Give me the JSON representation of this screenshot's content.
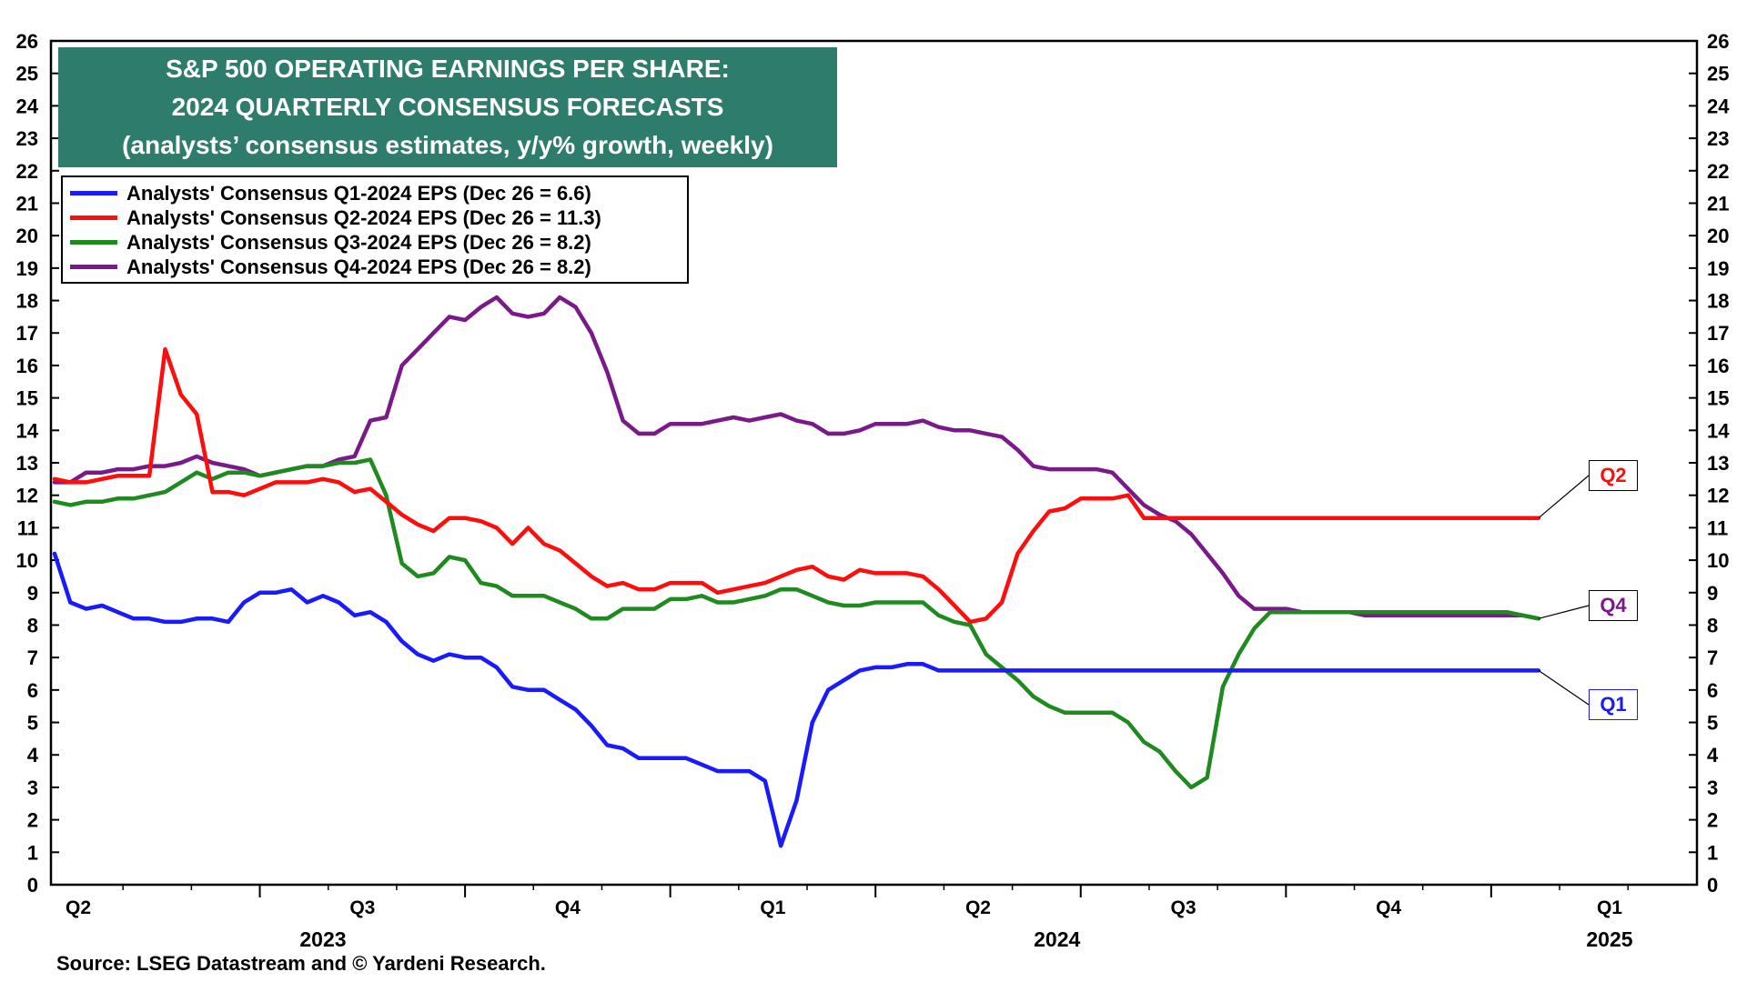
{
  "title": {
    "line1": "S&P 500 OPERATING EARNINGS PER SHARE:",
    "line2": "2024 QUARTERLY CONSENSUS FORECASTS",
    "line3": "(analysts’ consensus estimates, y/y% growth, weekly)"
  },
  "source": "Source: LSEG Datastream and © Yardeni Research.",
  "colors": {
    "q1": "#1a1aff",
    "q2": "#ff0d0d",
    "q3": "#1f8a1f",
    "q4": "#7a1a8a",
    "title_bg": "#2e7d6c"
  },
  "callouts": {
    "q1": "Q1",
    "q2": "Q2",
    "q4": "Q4"
  },
  "chart_data": {
    "type": "line",
    "title": "S&P 500 OPERATING EARNINGS PER SHARE: 2024 QUARTERLY CONSENSUS FORECASTS",
    "ylim": [
      0,
      26
    ],
    "yticks": [
      0,
      1,
      2,
      3,
      4,
      5,
      6,
      7,
      8,
      9,
      10,
      11,
      12,
      13,
      14,
      15,
      16,
      17,
      18,
      19,
      20,
      21,
      22,
      23,
      24,
      25,
      26
    ],
    "grid": false,
    "legend_position": "top-left",
    "x_quarter_labels": [
      "Q2",
      "Q3",
      "Q4",
      "Q1",
      "Q2",
      "Q3",
      "Q4",
      "Q1"
    ],
    "x_year_labels": [
      "2023",
      "2024",
      "2025"
    ],
    "x_unit": "weeks since start of Apr 2023",
    "x_range": [
      0,
      100
    ],
    "series": [
      {
        "name": "Analysts' Consensus Q1-2024 EPS (Dec 26 = 6.6)",
        "color": "#1a1aff",
        "x": [
          0,
          1,
          2,
          3,
          4,
          5,
          6,
          7,
          8,
          9,
          10,
          11,
          12,
          13,
          14,
          15,
          16,
          17,
          18,
          19,
          20,
          21,
          22,
          23,
          24,
          25,
          26,
          27,
          28,
          29,
          30,
          31,
          32,
          33,
          34,
          35,
          36,
          37,
          38,
          39,
          40,
          41,
          42,
          43,
          44,
          45,
          46,
          47,
          48,
          49,
          50,
          51,
          52,
          53,
          54,
          55,
          56,
          57,
          58,
          59,
          60,
          61,
          62,
          63,
          64,
          65,
          66,
          67,
          68,
          69,
          70,
          71,
          72,
          73,
          74,
          75,
          76,
          77,
          78,
          79,
          80,
          81,
          82,
          83,
          84,
          85,
          86,
          87,
          88,
          89,
          90,
          91,
          92,
          93,
          94
        ],
        "y": [
          10.2,
          8.7,
          8.5,
          8.6,
          8.4,
          8.2,
          8.2,
          8.1,
          8.1,
          8.2,
          8.2,
          8.1,
          8.7,
          9.0,
          9.0,
          9.1,
          8.7,
          8.9,
          8.7,
          8.3,
          8.4,
          8.1,
          7.5,
          7.1,
          6.9,
          7.1,
          7.0,
          7.0,
          6.7,
          6.1,
          6.0,
          6.0,
          5.7,
          5.4,
          4.9,
          4.3,
          4.2,
          3.9,
          3.9,
          3.9,
          3.9,
          3.7,
          3.5,
          3.5,
          3.5,
          3.2,
          1.2,
          2.6,
          5.0,
          6.0,
          6.3,
          6.6,
          6.7,
          6.7,
          6.8,
          6.8,
          6.6,
          6.6,
          6.6,
          6.6,
          6.6,
          6.6,
          6.6,
          6.6,
          6.6,
          6.6,
          6.6,
          6.6,
          6.6,
          6.6,
          6.6,
          6.6,
          6.6,
          6.6,
          6.6,
          6.6,
          6.6,
          6.6,
          6.6,
          6.6,
          6.6,
          6.6,
          6.6,
          6.6,
          6.6,
          6.6,
          6.6,
          6.6,
          6.6,
          6.6,
          6.6,
          6.6,
          6.6,
          6.6,
          6.6
        ]
      },
      {
        "name": "Analysts' Consensus Q2-2024 EPS (Dec 26 = 11.3)",
        "color": "#ff0d0d",
        "x": [
          0,
          1,
          2,
          3,
          4,
          5,
          6,
          7,
          8,
          9,
          10,
          11,
          12,
          13,
          14,
          15,
          16,
          17,
          18,
          19,
          20,
          21,
          22,
          23,
          24,
          25,
          26,
          27,
          28,
          29,
          30,
          31,
          32,
          33,
          34,
          35,
          36,
          37,
          38,
          39,
          40,
          41,
          42,
          43,
          44,
          45,
          46,
          47,
          48,
          49,
          50,
          51,
          52,
          53,
          54,
          55,
          56,
          57,
          58,
          59,
          60,
          61,
          62,
          63,
          64,
          65,
          66,
          67,
          68,
          69,
          70,
          71,
          72,
          73,
          74,
          75,
          76,
          77,
          78,
          79,
          80,
          81,
          82,
          83,
          84,
          85,
          86,
          87,
          88,
          89,
          90,
          91,
          92,
          93,
          94
        ],
        "y": [
          12.5,
          12.4,
          12.4,
          12.5,
          12.6,
          12.6,
          12.6,
          16.5,
          15.1,
          14.5,
          12.1,
          12.1,
          12.0,
          12.2,
          12.4,
          12.4,
          12.4,
          12.5,
          12.4,
          12.1,
          12.2,
          11.8,
          11.4,
          11.1,
          10.9,
          11.3,
          11.3,
          11.2,
          11.0,
          10.5,
          11.0,
          10.5,
          10.3,
          9.9,
          9.5,
          9.2,
          9.3,
          9.1,
          9.1,
          9.3,
          9.3,
          9.3,
          9.0,
          9.1,
          9.2,
          9.3,
          9.5,
          9.7,
          9.8,
          9.5,
          9.4,
          9.7,
          9.6,
          9.6,
          9.6,
          9.5,
          9.1,
          8.6,
          8.1,
          8.2,
          8.7,
          10.2,
          10.9,
          11.5,
          11.6,
          11.9,
          11.9,
          11.9,
          12.0,
          11.3,
          11.3,
          11.3,
          11.3,
          11.3,
          11.3,
          11.3,
          11.3,
          11.3,
          11.3,
          11.3,
          11.3,
          11.3,
          11.3,
          11.3,
          11.3,
          11.3,
          11.3,
          11.3,
          11.3,
          11.3,
          11.3,
          11.3,
          11.3,
          11.3,
          11.3
        ]
      },
      {
        "name": "Analysts' Consensus Q3-2024 EPS (Dec 26 = 8.2)",
        "color": "#1f8a1f",
        "x": [
          0,
          1,
          2,
          3,
          4,
          5,
          6,
          7,
          8,
          9,
          10,
          11,
          12,
          13,
          14,
          15,
          16,
          17,
          18,
          19,
          20,
          21,
          22,
          23,
          24,
          25,
          26,
          27,
          28,
          29,
          30,
          31,
          32,
          33,
          34,
          35,
          36,
          37,
          38,
          39,
          40,
          41,
          42,
          43,
          44,
          45,
          46,
          47,
          48,
          49,
          50,
          51,
          52,
          53,
          54,
          55,
          56,
          57,
          58,
          59,
          60,
          61,
          62,
          63,
          64,
          65,
          66,
          67,
          68,
          69,
          70,
          71,
          72,
          73,
          74,
          75,
          76,
          77,
          78,
          79,
          80,
          81,
          82,
          83,
          84,
          85,
          86,
          87,
          88,
          89,
          90,
          91,
          92,
          93,
          94
        ],
        "y": [
          11.8,
          11.7,
          11.8,
          11.8,
          11.9,
          11.9,
          12.0,
          12.1,
          12.4,
          12.7,
          12.5,
          12.7,
          12.7,
          12.6,
          12.7,
          12.8,
          12.9,
          12.9,
          13.0,
          13.0,
          13.1,
          12.0,
          9.9,
          9.5,
          9.6,
          10.1,
          10.0,
          9.3,
          9.2,
          8.9,
          8.9,
          8.9,
          8.7,
          8.5,
          8.2,
          8.2,
          8.5,
          8.5,
          8.5,
          8.8,
          8.8,
          8.9,
          8.7,
          8.7,
          8.8,
          8.9,
          9.1,
          9.1,
          8.9,
          8.7,
          8.6,
          8.6,
          8.7,
          8.7,
          8.7,
          8.7,
          8.3,
          8.1,
          8.0,
          7.1,
          6.7,
          6.3,
          5.8,
          5.5,
          5.3,
          5.3,
          5.3,
          5.3,
          5.0,
          4.4,
          4.1,
          3.5,
          3.0,
          3.3,
          6.1,
          7.1,
          7.9,
          8.4,
          8.4,
          8.4,
          8.4,
          8.4,
          8.4,
          8.4,
          8.4,
          8.4,
          8.4,
          8.4,
          8.4,
          8.4,
          8.4,
          8.4,
          8.4,
          8.3,
          8.2
        ]
      },
      {
        "name": "Analysts' Consensus Q4-2024 EPS (Dec 26 = 8.2)",
        "color": "#7a1a8a",
        "x": [
          0,
          1,
          2,
          3,
          4,
          5,
          6,
          7,
          8,
          9,
          10,
          11,
          12,
          13,
          14,
          15,
          16,
          17,
          18,
          19,
          20,
          21,
          22,
          23,
          24,
          25,
          26,
          27,
          28,
          29,
          30,
          31,
          32,
          33,
          34,
          35,
          36,
          37,
          38,
          39,
          40,
          41,
          42,
          43,
          44,
          45,
          46,
          47,
          48,
          49,
          50,
          51,
          52,
          53,
          54,
          55,
          56,
          57,
          58,
          59,
          60,
          61,
          62,
          63,
          64,
          65,
          66,
          67,
          68,
          69,
          70,
          71,
          72,
          73,
          74,
          75,
          76,
          77,
          78,
          79,
          80,
          81,
          82,
          83,
          84,
          85,
          86,
          87,
          88,
          89,
          90,
          91,
          92,
          93,
          94
        ],
        "y": [
          12.4,
          12.4,
          12.7,
          12.7,
          12.8,
          12.8,
          12.9,
          12.9,
          13.0,
          13.2,
          13.0,
          12.9,
          12.8,
          12.6,
          12.7,
          12.8,
          12.9,
          12.9,
          13.1,
          13.2,
          14.3,
          14.4,
          16.0,
          16.5,
          17.0,
          17.5,
          17.4,
          17.8,
          18.1,
          17.6,
          17.5,
          17.6,
          18.1,
          17.8,
          17.0,
          15.8,
          14.3,
          13.9,
          13.9,
          14.2,
          14.2,
          14.2,
          14.3,
          14.4,
          14.3,
          14.4,
          14.5,
          14.3,
          14.2,
          13.9,
          13.9,
          14.0,
          14.2,
          14.2,
          14.2,
          14.3,
          14.1,
          14.0,
          14.0,
          13.9,
          13.8,
          13.4,
          12.9,
          12.8,
          12.8,
          12.8,
          12.8,
          12.7,
          12.2,
          11.7,
          11.4,
          11.2,
          10.8,
          10.2,
          9.6,
          8.9,
          8.5,
          8.5,
          8.5,
          8.4,
          8.4,
          8.4,
          8.4,
          8.3,
          8.3,
          8.3,
          8.3,
          8.3,
          8.3,
          8.3,
          8.3,
          8.3,
          8.3,
          8.3,
          8.2
        ]
      }
    ]
  }
}
